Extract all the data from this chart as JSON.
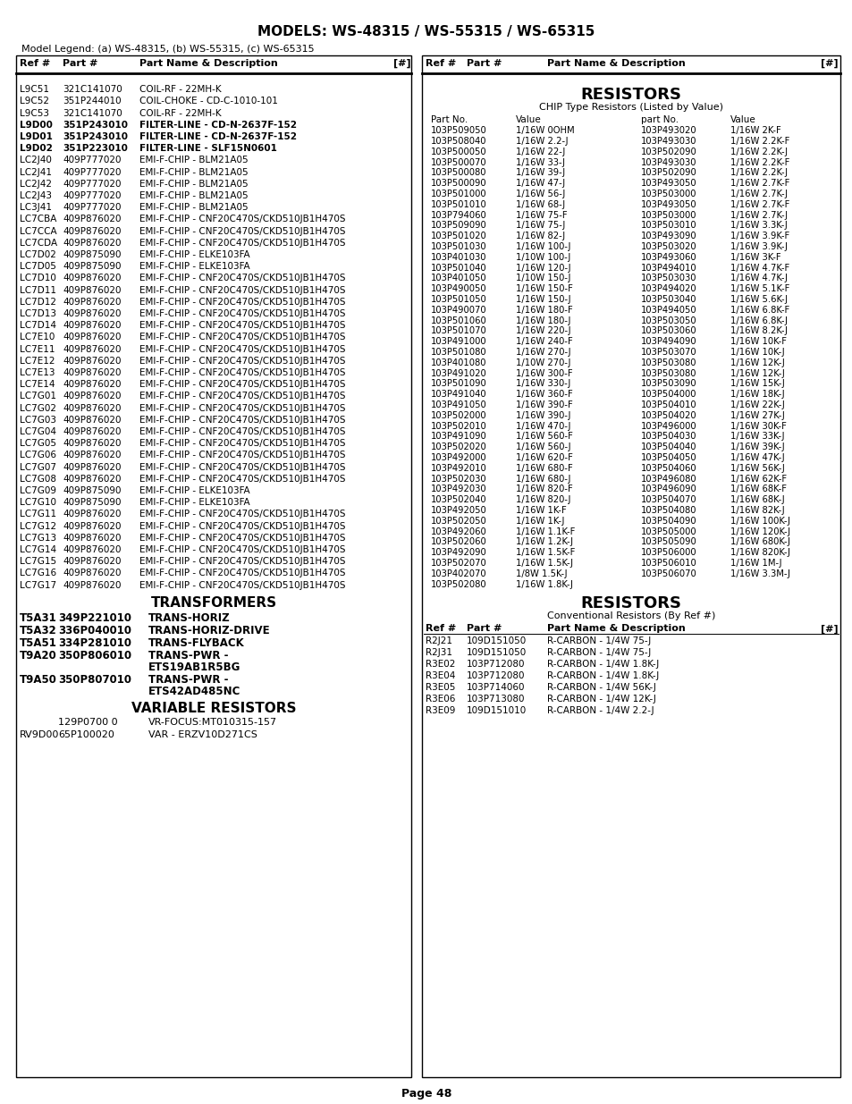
{
  "title": "MODELS: WS-48315 / WS-55315 / WS-65315",
  "model_legend": "Model Legend: (a) WS-48315, (b) WS-55315, (c) WS-65315",
  "page_num": "Page 48",
  "left_rows": [
    [
      "L9C51",
      "321C141070",
      "COIL-RF - 22MH-K",
      false
    ],
    [
      "L9C52",
      "351P244010",
      "COIL-CHOKE - CD-C-1010-101",
      false
    ],
    [
      "L9C53",
      "321C141070",
      "COIL-RF - 22MH-K",
      false
    ],
    [
      "L9D00",
      "351P243010",
      "FILTER-LINE - CD-N-2637F-152",
      true
    ],
    [
      "L9D01",
      "351P243010",
      "FILTER-LINE - CD-N-2637F-152",
      true
    ],
    [
      "L9D02",
      "351P223010",
      "FILTER-LINE - SLF15N0601",
      true
    ],
    [
      "LC2J40",
      "409P777020",
      "EMI-F-CHIP - BLM21A05",
      false
    ],
    [
      "LC2J41",
      "409P777020",
      "EMI-F-CHIP - BLM21A05",
      false
    ],
    [
      "LC2J42",
      "409P777020",
      "EMI-F-CHIP - BLM21A05",
      false
    ],
    [
      "LC2J43",
      "409P777020",
      "EMI-F-CHIP - BLM21A05",
      false
    ],
    [
      "LC3J41",
      "409P777020",
      "EMI-F-CHIP - BLM21A05",
      false
    ],
    [
      "LC7CBA",
      "409P876020",
      "EMI-F-CHIP - CNF20C470S/CKD510JB1H470S",
      false
    ],
    [
      "LC7CCA",
      "409P876020",
      "EMI-F-CHIP - CNF20C470S/CKD510JB1H470S",
      false
    ],
    [
      "LC7CDA",
      "409P876020",
      "EMI-F-CHIP - CNF20C470S/CKD510JB1H470S",
      false
    ],
    [
      "LC7D02",
      "409P875090",
      "EMI-F-CHIP - ELKE103FA",
      false
    ],
    [
      "LC7D05",
      "409P875090",
      "EMI-F-CHIP - ELKE103FA",
      false
    ],
    [
      "LC7D10",
      "409P876020",
      "EMI-F-CHIP - CNF20C470S/CKD510JB1H470S",
      false
    ],
    [
      "LC7D11",
      "409P876020",
      "EMI-F-CHIP - CNF20C470S/CKD510JB1H470S",
      false
    ],
    [
      "LC7D12",
      "409P876020",
      "EMI-F-CHIP - CNF20C470S/CKD510JB1H470S",
      false
    ],
    [
      "LC7D13",
      "409P876020",
      "EMI-F-CHIP - CNF20C470S/CKD510JB1H470S",
      false
    ],
    [
      "LC7D14",
      "409P876020",
      "EMI-F-CHIP - CNF20C470S/CKD510JB1H470S",
      false
    ],
    [
      "LC7E10",
      "409P876020",
      "EMI-F-CHIP - CNF20C470S/CKD510JB1H470S",
      false
    ],
    [
      "LC7E11",
      "409P876020",
      "EMI-F-CHIP - CNF20C470S/CKD510JB1H470S",
      false
    ],
    [
      "LC7E12",
      "409P876020",
      "EMI-F-CHIP - CNF20C470S/CKD510JB1H470S",
      false
    ],
    [
      "LC7E13",
      "409P876020",
      "EMI-F-CHIP - CNF20C470S/CKD510JB1H470S",
      false
    ],
    [
      "LC7E14",
      "409P876020",
      "EMI-F-CHIP - CNF20C470S/CKD510JB1H470S",
      false
    ],
    [
      "LC7G01",
      "409P876020",
      "EMI-F-CHIP - CNF20C470S/CKD510JB1H470S",
      false
    ],
    [
      "LC7G02",
      "409P876020",
      "EMI-F-CHIP - CNF20C470S/CKD510JB1H470S",
      false
    ],
    [
      "LC7G03",
      "409P876020",
      "EMI-F-CHIP - CNF20C470S/CKD510JB1H470S",
      false
    ],
    [
      "LC7G04",
      "409P876020",
      "EMI-F-CHIP - CNF20C470S/CKD510JB1H470S",
      false
    ],
    [
      "LC7G05",
      "409P876020",
      "EMI-F-CHIP - CNF20C470S/CKD510JB1H470S",
      false
    ],
    [
      "LC7G06",
      "409P876020",
      "EMI-F-CHIP - CNF20C470S/CKD510JB1H470S",
      false
    ],
    [
      "LC7G07",
      "409P876020",
      "EMI-F-CHIP - CNF20C470S/CKD510JB1H470S",
      false
    ],
    [
      "LC7G08",
      "409P876020",
      "EMI-F-CHIP - CNF20C470S/CKD510JB1H470S",
      false
    ],
    [
      "LC7G09",
      "409P875090",
      "EMI-F-CHIP - ELKE103FA",
      false
    ],
    [
      "LC7G10",
      "409P875090",
      "EMI-F-CHIP - ELKE103FA",
      false
    ],
    [
      "LC7G11",
      "409P876020",
      "EMI-F-CHIP - CNF20C470S/CKD510JB1H470S",
      false
    ],
    [
      "LC7G12",
      "409P876020",
      "EMI-F-CHIP - CNF20C470S/CKD510JB1H470S",
      false
    ],
    [
      "LC7G13",
      "409P876020",
      "EMI-F-CHIP - CNF20C470S/CKD510JB1H470S",
      false
    ],
    [
      "LC7G14",
      "409P876020",
      "EMI-F-CHIP - CNF20C470S/CKD510JB1H470S",
      false
    ],
    [
      "LC7G15",
      "409P876020",
      "EMI-F-CHIP - CNF20C470S/CKD510JB1H470S",
      false
    ],
    [
      "LC7G16",
      "409P876020",
      "EMI-F-CHIP - CNF20C470S/CKD510JB1H470S",
      false
    ],
    [
      "LC7G17",
      "409P876020",
      "EMI-F-CHIP - CNF20C470S/CKD510JB1H470S",
      false
    ]
  ],
  "transformers_title": "TRANSFORMERS",
  "transformers": [
    [
      "T5A31",
      "349P221010",
      "TRANS-HORIZ",
      true
    ],
    [
      "T5A32",
      "336P040010",
      "TRANS-HORIZ-DRIVE",
      true
    ],
    [
      "T5A51",
      "334P281010",
      "TRANS-FLYBACK",
      true
    ],
    [
      "T9A20",
      "350P806010",
      "TRANS-PWR -",
      "ETS19AB1R5BG",
      true
    ],
    [
      "T9A50",
      "350P807010",
      "TRANS-PWR -",
      "ETS42AD485NC",
      true
    ]
  ],
  "var_resistors_title": "VARIABLE RESISTORS",
  "var_resistors": [
    [
      "",
      "129P0700 0",
      "VR-FOCUS:MT010315-157"
    ],
    [
      "RV9D00",
      "65P100020",
      "VAR - ERZV10D271CS"
    ]
  ],
  "right_resistors_title": "RESISTORS",
  "right_chip_subtitle": "CHIP Type Resistors (Listed by Value)",
  "right_chip_col_headers": [
    "Part No.",
    "Value",
    "part No.",
    "Value"
  ],
  "right_chip_rows": [
    [
      "103P509050",
      "1/16W 0OHM",
      "103P493020",
      "1/16W 2K-F"
    ],
    [
      "103P508040",
      "1/16W 2.2-J",
      "103P493030",
      "1/16W 2.2K-F"
    ],
    [
      "103P500050",
      "1/16W 22-J",
      "103P502090",
      "1/16W 2.2K-J"
    ],
    [
      "103P500070",
      "1/16W 33-J",
      "103P493030",
      "1/16W 2.2K-F"
    ],
    [
      "103P500080",
      "1/16W 39-J",
      "103P502090",
      "1/16W 2.2K-J"
    ],
    [
      "103P500090",
      "1/16W 47-J",
      "103P493050",
      "1/16W 2.7K-F"
    ],
    [
      "103P501000",
      "1/16W 56-J",
      "103P503000",
      "1/16W 2.7K-J"
    ],
    [
      "103P501010",
      "1/16W 68-J",
      "103P493050",
      "1/16W 2.7K-F"
    ],
    [
      "103P794060",
      "1/16W 75-F",
      "103P503000",
      "1/16W 2.7K-J"
    ],
    [
      "103P509090",
      "1/16W 75-J",
      "103P503010",
      "1/16W 3.3K-J"
    ],
    [
      "103P501020",
      "1/16W 82-J",
      "103P493090",
      "1/16W 3.9K-F"
    ],
    [
      "103P501030",
      "1/16W 100-J",
      "103P503020",
      "1/16W 3.9K-J"
    ],
    [
      "103P401030",
      "1/10W 100-J",
      "103P493060",
      "1/16W 3K-F"
    ],
    [
      "103P501040",
      "1/16W 120-J",
      "103P494010",
      "1/16W 4.7K-F"
    ],
    [
      "103P401050",
      "1/10W 150-J",
      "103P503030",
      "1/16W 4.7K-J"
    ],
    [
      "103P490050",
      "1/16W 150-F",
      "103P494020",
      "1/16W 5.1K-F"
    ],
    [
      "103P501050",
      "1/16W 150-J",
      "103P503040",
      "1/16W 5.6K-J"
    ],
    [
      "103P490070",
      "1/16W 180-F",
      "103P494050",
      "1/16W 6.8K-F"
    ],
    [
      "103P501060",
      "1/16W 180-J",
      "103P503050",
      "1/16W 6.8K-J"
    ],
    [
      "103P501070",
      "1/16W 220-J",
      "103P503060",
      "1/16W 8.2K-J"
    ],
    [
      "103P491000",
      "1/16W 240-F",
      "103P494090",
      "1/16W 10K-F"
    ],
    [
      "103P501080",
      "1/16W 270-J",
      "103P503070",
      "1/16W 10K-J"
    ],
    [
      "103P401080",
      "1/10W 270-J",
      "103P503080",
      "1/16W 12K-J"
    ],
    [
      "103P491020",
      "1/16W 300-F",
      "103P503080",
      "1/16W 12K-J"
    ],
    [
      "103P501090",
      "1/16W 330-J",
      "103P503090",
      "1/16W 15K-J"
    ],
    [
      "103P491040",
      "1/16W 360-F",
      "103P504000",
      "1/16W 18K-J"
    ],
    [
      "103P491050",
      "1/16W 390-F",
      "103P504010",
      "1/16W 22K-J"
    ],
    [
      "103P502000",
      "1/16W 390-J",
      "103P504020",
      "1/16W 27K-J"
    ],
    [
      "103P502010",
      "1/16W 470-J",
      "103P496000",
      "1/16W 30K-F"
    ],
    [
      "103P491090",
      "1/16W 560-F",
      "103P504030",
      "1/16W 33K-J"
    ],
    [
      "103P502020",
      "1/16W 560-J",
      "103P504040",
      "1/16W 39K-J"
    ],
    [
      "103P492000",
      "1/16W 620-F",
      "103P504050",
      "1/16W 47K-J"
    ],
    [
      "103P492010",
      "1/16W 680-F",
      "103P504060",
      "1/16W 56K-J"
    ],
    [
      "103P502030",
      "1/16W 680-J",
      "103P496080",
      "1/16W 62K-F"
    ],
    [
      "103P492030",
      "1/16W 820-F",
      "103P496090",
      "1/16W 68K-F"
    ],
    [
      "103P502040",
      "1/16W 820-J",
      "103P504070",
      "1/16W 68K-J"
    ],
    [
      "103P492050",
      "1/16W 1K-F",
      "103P504080",
      "1/16W 82K-J"
    ],
    [
      "103P502050",
      "1/16W 1K-J",
      "103P504090",
      "1/16W 100K-J"
    ],
    [
      "103P492060",
      "1/16W 1.1K-F",
      "103P505000",
      "1/16W 120K-J"
    ],
    [
      "103P502060",
      "1/16W 1.2K-J",
      "103P505090",
      "1/16W 680K-J"
    ],
    [
      "103P492090",
      "1/16W 1.5K-F",
      "103P506000",
      "1/16W 820K-J"
    ],
    [
      "103P502070",
      "1/16W 1.5K-J",
      "103P506010",
      "1/16W 1M-J"
    ],
    [
      "103P402070",
      "1/8W 1.5K-J",
      "103P506070",
      "1/16W 3.3M-J"
    ],
    [
      "103P502080",
      "1/16W 1.8K-J",
      "",
      ""
    ]
  ],
  "right_conv_resistors_title": "RESISTORS",
  "right_conv_subtitle": "Conventional Resistors (By Ref #)",
  "right_conv_rows": [
    [
      "R2J21",
      "109D151050",
      "R-CARBON - 1/4W 75-J"
    ],
    [
      "R2J31",
      "109D151050",
      "R-CARBON - 1/4W 75-J"
    ],
    [
      "R3E02",
      "103P712080",
      "R-CARBON - 1/4W 1.8K-J"
    ],
    [
      "R3E04",
      "103P712080",
      "R-CARBON - 1/4W 1.8K-J"
    ],
    [
      "R3E05",
      "103P714060",
      "R-CARBON - 1/4W 56K-J"
    ],
    [
      "R3E06",
      "103P713080",
      "R-CARBON - 1/4W 12K-J"
    ],
    [
      "R3E09",
      "109D151010",
      "R-CARBON - 1/4W 2.2-J"
    ]
  ]
}
